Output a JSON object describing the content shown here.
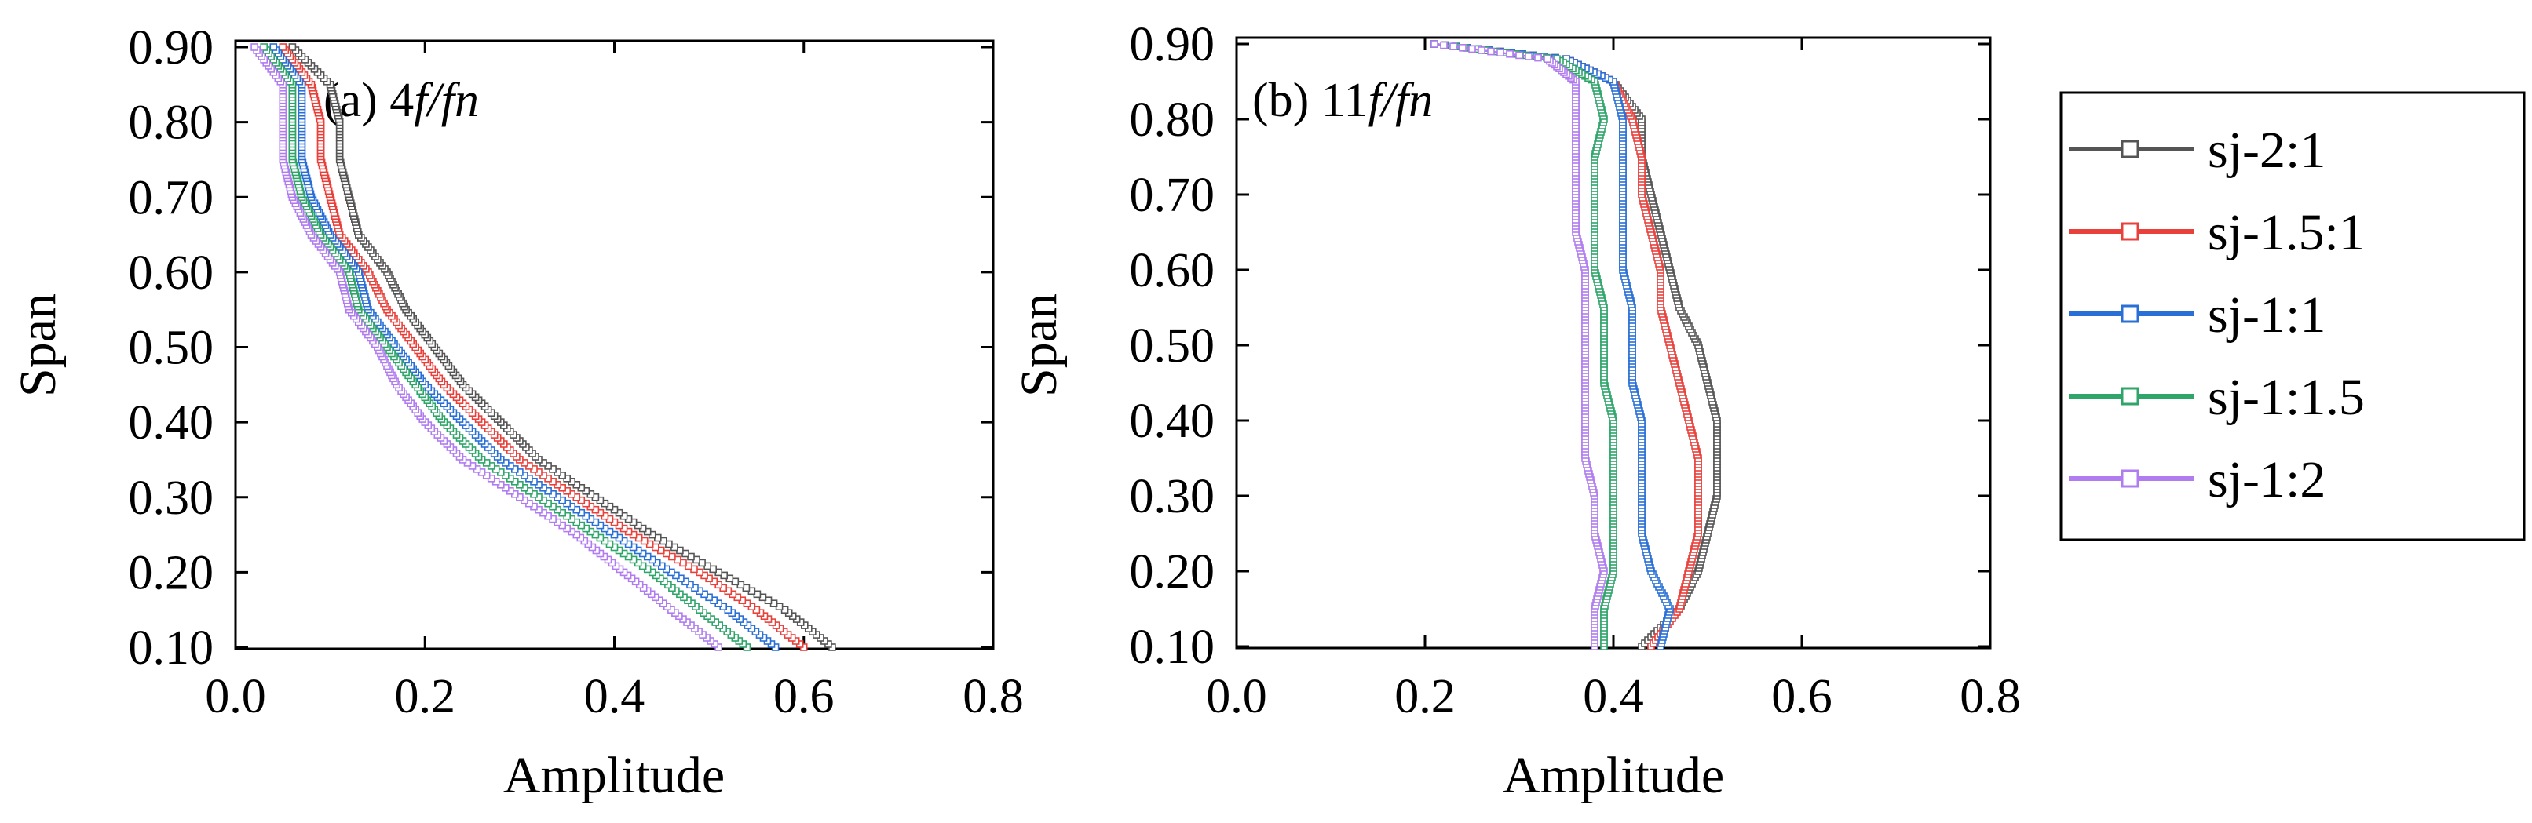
{
  "chart_data": [
    {
      "type": "line",
      "panel_label": "(a) 4",
      "panel_label_italic": "f/fn",
      "xlabel": "Amplitude",
      "ylabel": "Span",
      "xlim": [
        0.0,
        0.8
      ],
      "ylim": [
        0.1,
        0.9
      ],
      "xticks": [
        "0.0",
        "0.2",
        "0.4",
        "0.6",
        "0.8"
      ],
      "yticks": [
        "0.10",
        "0.20",
        "0.30",
        "0.40",
        "0.50",
        "0.60",
        "0.70",
        "0.80",
        "0.90"
      ],
      "series": [
        {
          "name": "sj-2:1",
          "points": [
            [
              0.63,
              0.1
            ],
            [
              0.58,
              0.15
            ],
            [
              0.51,
              0.2
            ],
            [
              0.44,
              0.25
            ],
            [
              0.38,
              0.3
            ],
            [
              0.32,
              0.35
            ],
            [
              0.28,
              0.4
            ],
            [
              0.24,
              0.45
            ],
            [
              0.21,
              0.5
            ],
            [
              0.18,
              0.55
            ],
            [
              0.16,
              0.6
            ],
            [
              0.13,
              0.65
            ],
            [
              0.12,
              0.7
            ],
            [
              0.11,
              0.75
            ],
            [
              0.11,
              0.8
            ],
            [
              0.1,
              0.85
            ],
            [
              0.06,
              0.9
            ]
          ]
        },
        {
          "name": "sj-1.5:1",
          "points": [
            [
              0.6,
              0.1
            ],
            [
              0.55,
              0.15
            ],
            [
              0.49,
              0.2
            ],
            [
              0.42,
              0.25
            ],
            [
              0.36,
              0.3
            ],
            [
              0.3,
              0.35
            ],
            [
              0.26,
              0.4
            ],
            [
              0.22,
              0.45
            ],
            [
              0.19,
              0.5
            ],
            [
              0.16,
              0.55
            ],
            [
              0.14,
              0.6
            ],
            [
              0.11,
              0.65
            ],
            [
              0.1,
              0.7
            ],
            [
              0.09,
              0.75
            ],
            [
              0.09,
              0.8
            ],
            [
              0.08,
              0.85
            ],
            [
              0.05,
              0.9
            ]
          ]
        },
        {
          "name": "sj-1:1",
          "points": [
            [
              0.57,
              0.1
            ],
            [
              0.52,
              0.15
            ],
            [
              0.46,
              0.2
            ],
            [
              0.4,
              0.25
            ],
            [
              0.34,
              0.3
            ],
            [
              0.28,
              0.35
            ],
            [
              0.24,
              0.4
            ],
            [
              0.2,
              0.45
            ],
            [
              0.17,
              0.5
            ],
            [
              0.14,
              0.55
            ],
            [
              0.13,
              0.6
            ],
            [
              0.1,
              0.65
            ],
            [
              0.08,
              0.7
            ],
            [
              0.07,
              0.75
            ],
            [
              0.07,
              0.8
            ],
            [
              0.07,
              0.85
            ],
            [
              0.04,
              0.9
            ]
          ]
        },
        {
          "name": "sj-1:1.5",
          "points": [
            [
              0.54,
              0.1
            ],
            [
              0.49,
              0.15
            ],
            [
              0.44,
              0.2
            ],
            [
              0.38,
              0.25
            ],
            [
              0.32,
              0.3
            ],
            [
              0.26,
              0.35
            ],
            [
              0.22,
              0.4
            ],
            [
              0.19,
              0.45
            ],
            [
              0.16,
              0.5
            ],
            [
              0.13,
              0.55
            ],
            [
              0.12,
              0.6
            ],
            [
              0.09,
              0.65
            ],
            [
              0.07,
              0.7
            ],
            [
              0.06,
              0.75
            ],
            [
              0.06,
              0.8
            ],
            [
              0.06,
              0.85
            ],
            [
              0.03,
              0.9
            ]
          ]
        },
        {
          "name": "sj-1:2",
          "points": [
            [
              0.51,
              0.1
            ],
            [
              0.46,
              0.15
            ],
            [
              0.41,
              0.2
            ],
            [
              0.36,
              0.25
            ],
            [
              0.3,
              0.3
            ],
            [
              0.24,
              0.35
            ],
            [
              0.2,
              0.4
            ],
            [
              0.17,
              0.45
            ],
            [
              0.15,
              0.5
            ],
            [
              0.12,
              0.55
            ],
            [
              0.11,
              0.6
            ],
            [
              0.08,
              0.65
            ],
            [
              0.06,
              0.7
            ],
            [
              0.05,
              0.75
            ],
            [
              0.05,
              0.8
            ],
            [
              0.05,
              0.85
            ],
            [
              0.02,
              0.9
            ]
          ]
        }
      ]
    },
    {
      "type": "line",
      "panel_label": "(b) 11",
      "panel_label_italic": "f/fn",
      "xlabel": "Amplitude",
      "ylabel": "Span",
      "xlim": [
        0.0,
        0.8
      ],
      "ylim": [
        0.1,
        0.9
      ],
      "xticks": [
        "0.0",
        "0.2",
        "0.4",
        "0.6",
        "0.8"
      ],
      "yticks": [
        "0.10",
        "0.20",
        "0.30",
        "0.40",
        "0.50",
        "0.60",
        "0.70",
        "0.80",
        "0.90"
      ],
      "series": [
        {
          "name": "sj-2:1",
          "points": [
            [
              0.43,
              0.1
            ],
            [
              0.47,
              0.15
            ],
            [
              0.49,
              0.2
            ],
            [
              0.5,
              0.25
            ],
            [
              0.51,
              0.3
            ],
            [
              0.51,
              0.35
            ],
            [
              0.51,
              0.4
            ],
            [
              0.5,
              0.45
            ],
            [
              0.49,
              0.5
            ],
            [
              0.47,
              0.55
            ],
            [
              0.46,
              0.6
            ],
            [
              0.45,
              0.65
            ],
            [
              0.44,
              0.7
            ],
            [
              0.43,
              0.75
            ],
            [
              0.43,
              0.8
            ],
            [
              0.4,
              0.85
            ],
            [
              0.35,
              0.88
            ],
            [
              0.21,
              0.9
            ]
          ]
        },
        {
          "name": "sj-1.5:1",
          "points": [
            [
              0.44,
              0.1
            ],
            [
              0.47,
              0.15
            ],
            [
              0.48,
              0.2
            ],
            [
              0.49,
              0.25
            ],
            [
              0.49,
              0.3
            ],
            [
              0.49,
              0.35
            ],
            [
              0.48,
              0.4
            ],
            [
              0.47,
              0.45
            ],
            [
              0.46,
              0.5
            ],
            [
              0.45,
              0.55
            ],
            [
              0.45,
              0.6
            ],
            [
              0.44,
              0.65
            ],
            [
              0.43,
              0.7
            ],
            [
              0.43,
              0.75
            ],
            [
              0.42,
              0.8
            ],
            [
              0.4,
              0.85
            ],
            [
              0.35,
              0.88
            ],
            [
              0.21,
              0.9
            ]
          ]
        },
        {
          "name": "sj-1:1",
          "points": [
            [
              0.45,
              0.1
            ],
            [
              0.46,
              0.15
            ],
            [
              0.44,
              0.2
            ],
            [
              0.43,
              0.25
            ],
            [
              0.43,
              0.3
            ],
            [
              0.43,
              0.35
            ],
            [
              0.43,
              0.4
            ],
            [
              0.42,
              0.45
            ],
            [
              0.42,
              0.5
            ],
            [
              0.42,
              0.55
            ],
            [
              0.41,
              0.6
            ],
            [
              0.41,
              0.65
            ],
            [
              0.41,
              0.7
            ],
            [
              0.41,
              0.75
            ],
            [
              0.41,
              0.8
            ],
            [
              0.4,
              0.85
            ],
            [
              0.35,
              0.88
            ],
            [
              0.21,
              0.9
            ]
          ]
        },
        {
          "name": "sj-1:1.5",
          "points": [
            [
              0.39,
              0.1
            ],
            [
              0.39,
              0.15
            ],
            [
              0.4,
              0.2
            ],
            [
              0.4,
              0.25
            ],
            [
              0.4,
              0.3
            ],
            [
              0.4,
              0.35
            ],
            [
              0.4,
              0.4
            ],
            [
              0.39,
              0.45
            ],
            [
              0.39,
              0.5
            ],
            [
              0.39,
              0.55
            ],
            [
              0.38,
              0.6
            ],
            [
              0.38,
              0.65
            ],
            [
              0.38,
              0.7
            ],
            [
              0.38,
              0.75
            ],
            [
              0.39,
              0.8
            ],
            [
              0.38,
              0.85
            ],
            [
              0.34,
              0.88
            ],
            [
              0.21,
              0.9
            ]
          ]
        },
        {
          "name": "sj-1:2",
          "points": [
            [
              0.38,
              0.1
            ],
            [
              0.38,
              0.15
            ],
            [
              0.39,
              0.2
            ],
            [
              0.38,
              0.25
            ],
            [
              0.38,
              0.3
            ],
            [
              0.37,
              0.35
            ],
            [
              0.37,
              0.4
            ],
            [
              0.37,
              0.45
            ],
            [
              0.37,
              0.5
            ],
            [
              0.37,
              0.55
            ],
            [
              0.37,
              0.6
            ],
            [
              0.36,
              0.65
            ],
            [
              0.36,
              0.7
            ],
            [
              0.36,
              0.75
            ],
            [
              0.36,
              0.8
            ],
            [
              0.36,
              0.85
            ],
            [
              0.33,
              0.88
            ],
            [
              0.21,
              0.9
            ]
          ]
        }
      ]
    }
  ],
  "legend": {
    "placement": "right",
    "entries": [
      "sj-2:1",
      "sj-1.5:1",
      "sj-1:1",
      "sj-1:1.5",
      "sj-1:2"
    ]
  },
  "colors": {
    "sj-2:1": "#555555",
    "sj-1.5:1": "#e8413c",
    "sj-1:1": "#2a6fd6",
    "sj-1:1.5": "#2fa56a",
    "sj-1:2": "#b07cf0"
  }
}
